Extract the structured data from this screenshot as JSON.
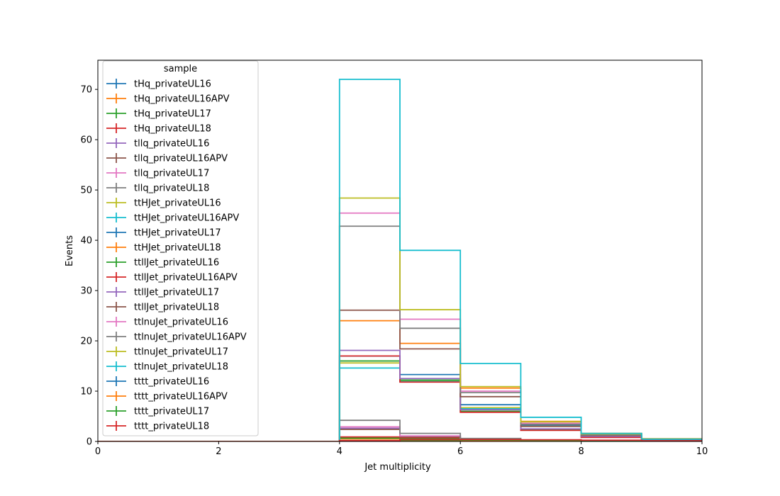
{
  "chart_data": {
    "type": "line",
    "style": "step-histogram",
    "xlabel": "Jet multiplicity",
    "ylabel": "Events",
    "xlim": [
      0,
      10
    ],
    "ylim": [
      0,
      75.8
    ],
    "xticks": [
      0,
      2,
      4,
      6,
      8,
      10
    ],
    "yticks": [
      0,
      10,
      20,
      30,
      40,
      50,
      60,
      70
    ],
    "bin_edges": [
      0,
      1,
      2,
      3,
      4,
      5,
      6,
      7,
      8,
      9,
      10
    ],
    "grid": false,
    "legend": {
      "title": "sample",
      "position": "upper-left"
    },
    "series": [
      {
        "name": "tHq_privateUL16",
        "color": "#1f77b4",
        "values": [
          0,
          0,
          0,
          0,
          0.55,
          0.45,
          0.3,
          0.15,
          0.08,
          0.04
        ]
      },
      {
        "name": "tHq_privateUL16APV",
        "color": "#ff7f0e",
        "values": [
          0,
          0,
          0,
          0,
          0.5,
          0.4,
          0.25,
          0.12,
          0.06,
          0.03
        ]
      },
      {
        "name": "tHq_privateUL17",
        "color": "#2ca02c",
        "values": [
          0,
          0,
          0,
          0,
          0.65,
          0.55,
          0.35,
          0.18,
          0.09,
          0.05
        ]
      },
      {
        "name": "tHq_privateUL18",
        "color": "#d62728",
        "values": [
          0,
          0,
          0,
          0,
          0.9,
          0.75,
          0.5,
          0.25,
          0.12,
          0.06
        ]
      },
      {
        "name": "tllq_privateUL16",
        "color": "#9467bd",
        "values": [
          0,
          0,
          0,
          0,
          2.6,
          1.0,
          0.4,
          0.15,
          0.05,
          0.02
        ]
      },
      {
        "name": "tllq_privateUL16APV",
        "color": "#8c564b",
        "values": [
          0,
          0,
          0,
          0,
          2.4,
          0.9,
          0.35,
          0.12,
          0.04,
          0.02
        ]
      },
      {
        "name": "tllq_privateUL17",
        "color": "#e377c2",
        "values": [
          0,
          0,
          0,
          0,
          2.9,
          1.1,
          0.45,
          0.15,
          0.05,
          0.02
        ]
      },
      {
        "name": "tllq_privateUL18",
        "color": "#7f7f7f",
        "values": [
          0,
          0,
          0,
          0,
          4.2,
          1.6,
          0.6,
          0.2,
          0.07,
          0.03
        ]
      },
      {
        "name": "ttHJet_privateUL16",
        "color": "#bcbd22",
        "values": [
          0,
          0,
          0,
          0,
          15.6,
          12.0,
          6.7,
          3.1,
          1.3,
          0.45
        ]
      },
      {
        "name": "ttHJet_privateUL16APV",
        "color": "#17becf",
        "values": [
          0,
          0,
          0,
          0,
          14.6,
          11.9,
          6.5,
          3.0,
          1.2,
          0.4
        ]
      },
      {
        "name": "ttHJet_privateUL17",
        "color": "#1f77b4",
        "values": [
          0,
          0,
          0,
          0,
          17.0,
          13.3,
          7.3,
          3.3,
          1.5,
          0.5
        ]
      },
      {
        "name": "ttHJet_privateUL18",
        "color": "#ff7f0e",
        "values": [
          0,
          0,
          0,
          0,
          24.0,
          19.5,
          10.6,
          4.0,
          1.6,
          0.55
        ]
      },
      {
        "name": "ttllJet_privateUL16",
        "color": "#2ca02c",
        "values": [
          0,
          0,
          0,
          0,
          16.0,
          12.2,
          6.0,
          2.3,
          0.9,
          0.3
        ]
      },
      {
        "name": "ttllJet_privateUL16APV",
        "color": "#d62728",
        "values": [
          0,
          0,
          0,
          0,
          17.0,
          11.8,
          5.8,
          2.2,
          0.8,
          0.3
        ]
      },
      {
        "name": "ttllJet_privateUL17",
        "color": "#9467bd",
        "values": [
          0,
          0,
          0,
          0,
          18.1,
          12.5,
          6.3,
          2.5,
          1.0,
          0.35
        ]
      },
      {
        "name": "ttllJet_privateUL18",
        "color": "#8c564b",
        "values": [
          0,
          0,
          0,
          0,
          26.1,
          18.4,
          8.9,
          3.0,
          1.2,
          0.4
        ]
      },
      {
        "name": "ttlnuJet_privateUL16",
        "color": "#e377c2",
        "values": [
          0,
          0,
          0,
          0,
          45.4,
          24.3,
          10.0,
          3.6,
          1.4,
          0.45
        ]
      },
      {
        "name": "ttlnuJet_privateUL16APV",
        "color": "#7f7f7f",
        "values": [
          0,
          0,
          0,
          0,
          42.8,
          22.5,
          9.7,
          3.4,
          1.3,
          0.4
        ]
      },
      {
        "name": "ttlnuJet_privateUL17",
        "color": "#bcbd22",
        "values": [
          0,
          0,
          0,
          0,
          48.4,
          26.2,
          10.9,
          3.9,
          1.5,
          0.5
        ]
      },
      {
        "name": "ttlnuJet_privateUL18",
        "color": "#17becf",
        "values": [
          0,
          0,
          0,
          0,
          72.0,
          38.0,
          15.5,
          4.8,
          1.6,
          0.45
        ]
      },
      {
        "name": "tttt_privateUL16",
        "color": "#1f77b4",
        "values": [
          0,
          0,
          0,
          0,
          0.1,
          0.2,
          0.22,
          0.2,
          0.15,
          0.08
        ]
      },
      {
        "name": "tttt_privateUL16APV",
        "color": "#ff7f0e",
        "values": [
          0,
          0,
          0,
          0,
          0.09,
          0.18,
          0.2,
          0.18,
          0.13,
          0.07
        ]
      },
      {
        "name": "tttt_privateUL17",
        "color": "#2ca02c",
        "values": [
          0,
          0,
          0,
          0,
          0.12,
          0.24,
          0.26,
          0.24,
          0.18,
          0.1
        ]
      },
      {
        "name": "tttt_privateUL18",
        "color": "#d62728",
        "values": [
          0,
          0,
          0,
          0,
          0.18,
          0.35,
          0.38,
          0.34,
          0.25,
          0.14
        ]
      }
    ]
  }
}
